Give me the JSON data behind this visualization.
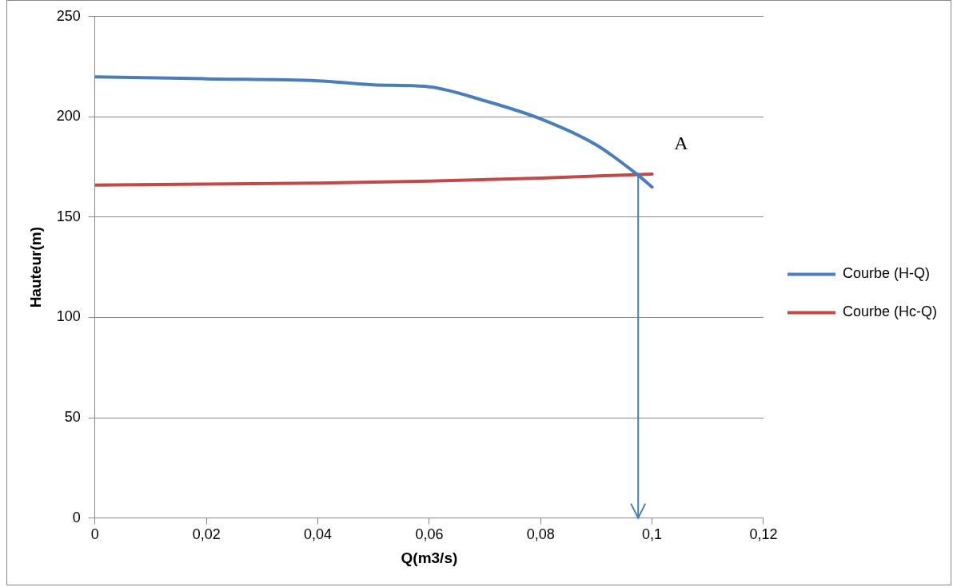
{
  "chart_data": {
    "type": "line",
    "xlabel": "Q(m3/s)",
    "ylabel": "Hauteur(m)",
    "xlim": [
      0,
      0.12
    ],
    "xticks": [
      {
        "value": 0,
        "label": "0"
      },
      {
        "value": 0.02,
        "label": "0,02"
      },
      {
        "value": 0.04,
        "label": "0,04"
      },
      {
        "value": 0.06,
        "label": "0,06"
      },
      {
        "value": 0.08,
        "label": "0,08"
      },
      {
        "value": 0.1,
        "label": "0,1"
      },
      {
        "value": 0.12,
        "label": "0,12"
      }
    ],
    "ylim": [
      0,
      250
    ],
    "yticks": [
      0,
      50,
      100,
      150,
      200,
      250
    ],
    "series": [
      {
        "name": "Courbe (H-Q)",
        "color": "#4a7ebb",
        "x": [
          0,
          0.02,
          0.04,
          0.05,
          0.06,
          0.07,
          0.08,
          0.09,
          0.097,
          0.1
        ],
        "values": [
          220,
          219,
          218,
          216,
          215,
          208,
          199,
          186,
          172,
          165
        ]
      },
      {
        "name": "Courbe (Hc-Q)",
        "color": "#be4b48",
        "x": [
          0,
          0.02,
          0.04,
          0.06,
          0.08,
          0.1
        ],
        "values": [
          166,
          166.5,
          167,
          168,
          169.5,
          171.5
        ]
      }
    ],
    "annotations": [
      {
        "text": "A",
        "x": 0.0975,
        "y": 172
      }
    ],
    "ref_lines": [
      {
        "axis": "x",
        "value": 0.0975,
        "color": "#4a7ebb"
      }
    ],
    "grid": "y",
    "legend": "right",
    "marker": "none",
    "line_style": "solid"
  }
}
